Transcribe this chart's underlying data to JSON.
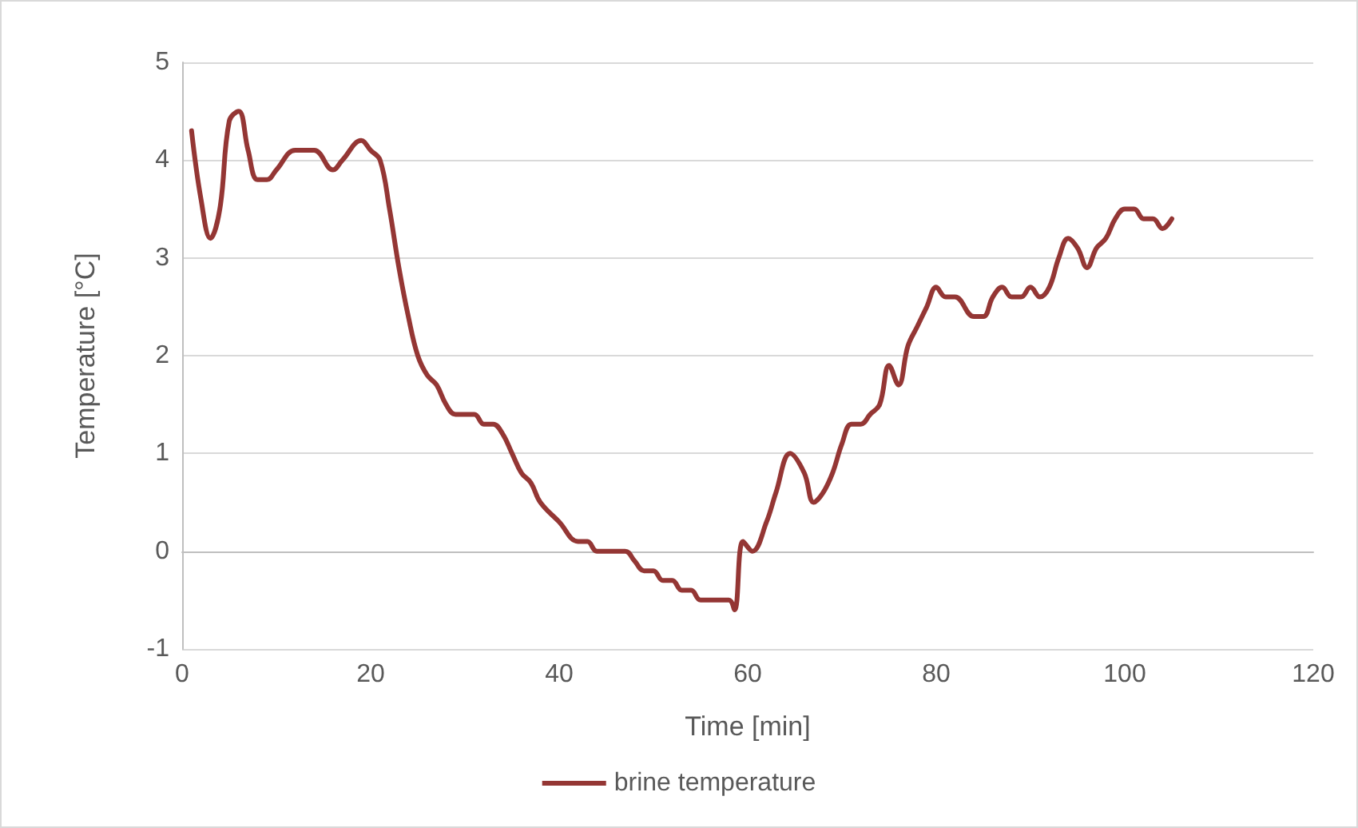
{
  "chart_data": {
    "type": "line",
    "xlabel": "Time [min]",
    "ylabel": "Temperature [°C]",
    "xlim": [
      0,
      120
    ],
    "xticks": [
      0,
      20,
      40,
      60,
      80,
      100,
      120
    ],
    "ylim": [
      -1,
      5
    ],
    "yticks": [
      -1,
      0,
      1,
      2,
      3,
      4,
      5
    ],
    "grid": "y",
    "legend": "bottom",
    "marker": "none",
    "line_style": "solid",
    "series": [
      {
        "name": "brine temperature",
        "color": "#943634",
        "x": [
          1,
          2,
          3,
          4,
          5,
          6,
          7,
          8,
          9,
          10,
          12,
          14,
          16,
          17,
          19,
          20,
          21,
          22,
          23,
          24,
          25,
          26,
          27,
          28,
          29,
          31,
          32,
          33,
          34,
          35,
          36,
          37,
          38,
          40,
          42,
          43,
          44,
          47,
          48,
          49,
          50,
          51,
          52,
          53,
          54,
          55,
          58,
          58.6,
          59.5,
          60.5,
          62,
          63,
          64.5,
          66,
          67,
          68,
          69,
          70,
          71,
          72,
          73,
          74,
          75,
          76,
          77,
          78,
          79,
          80,
          81,
          82,
          84,
          85,
          86,
          87,
          88,
          89,
          90,
          91,
          92,
          93,
          94,
          95,
          96,
          97,
          98,
          99,
          100,
          101,
          102,
          103,
          104,
          105
        ],
        "values": [
          4.3,
          3.6,
          3.2,
          3.5,
          4.4,
          4.5,
          4.1,
          3.8,
          3.8,
          3.9,
          4.1,
          4.1,
          3.9,
          4.0,
          4.2,
          4.1,
          4.0,
          3.5,
          2.9,
          2.4,
          2.0,
          1.8,
          1.7,
          1.5,
          1.4,
          1.4,
          1.3,
          1.3,
          1.2,
          1.0,
          0.8,
          0.7,
          0.5,
          0.3,
          0.1,
          0.1,
          0.0,
          0.0,
          -0.1,
          -0.2,
          -0.2,
          -0.3,
          -0.3,
          -0.4,
          -0.4,
          -0.5,
          -0.5,
          -0.6,
          0.1,
          0.0,
          0.3,
          0.6,
          1.0,
          0.8,
          0.5,
          0.6,
          0.8,
          1.1,
          1.3,
          1.3,
          1.4,
          1.5,
          1.9,
          1.7,
          2.1,
          2.3,
          2.5,
          2.7,
          2.6,
          2.6,
          2.4,
          2.4,
          2.6,
          2.7,
          2.6,
          2.6,
          2.7,
          2.6,
          2.7,
          3.0,
          3.2,
          3.1,
          2.9,
          3.1,
          3.2,
          3.4,
          3.5,
          3.5,
          3.4,
          3.4,
          3.3,
          3.4
        ]
      }
    ]
  }
}
